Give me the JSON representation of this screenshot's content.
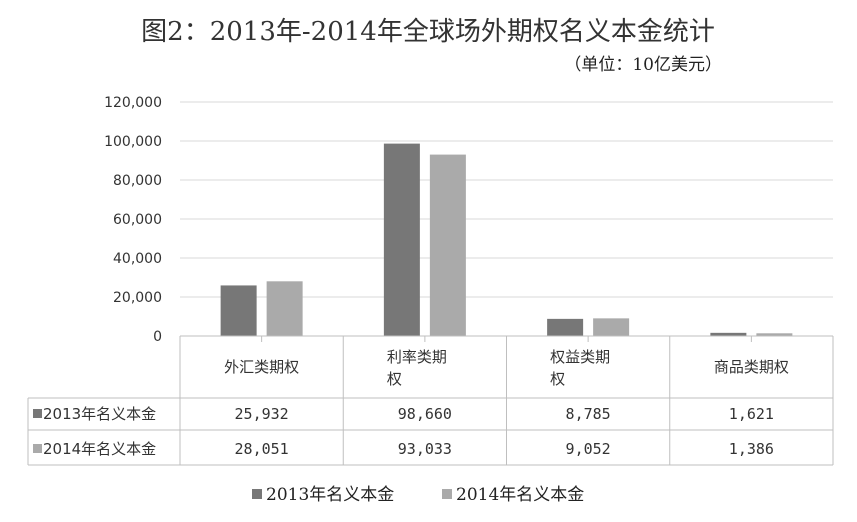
{
  "chart_data": {
    "type": "bar",
    "title": "图2：2013年-2014年全球场外期权名义本金统计",
    "subtitle": "（单位：10亿美元）",
    "categories": [
      [
        "外汇类期权"
      ],
      [
        "利率类期",
        "权"
      ],
      [
        "权益类期",
        "权"
      ],
      [
        "商品类期权"
      ]
    ],
    "series": [
      {
        "name": "2013年名义本金",
        "values": [
          25932,
          98660,
          8785,
          1621
        ],
        "labels": [
          "25,932",
          "98,660",
          "8,785",
          "1,621"
        ],
        "color": "#777777"
      },
      {
        "name": "2014年名义本金",
        "values": [
          28051,
          93033,
          9052,
          1386
        ],
        "labels": [
          "28,051",
          "93,033",
          "9,052",
          "1,386"
        ],
        "color": "#aaaaaa"
      }
    ],
    "yticks": [
      "120,000",
      "100,000",
      "80,000",
      "60,000",
      "40,000",
      "20,000",
      "0"
    ],
    "ylim": [
      0,
      120000
    ],
    "grid": true,
    "legend": "bottom"
  }
}
